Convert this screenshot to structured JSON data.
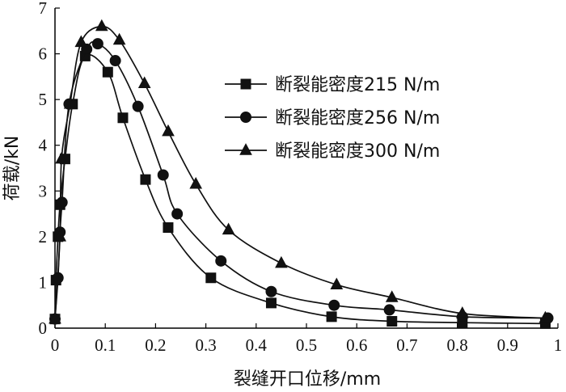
{
  "chart_data": {
    "type": "line",
    "xlabel": "裂缝开口位移/mm",
    "ylabel": "荷载/kN",
    "xlim": [
      0,
      1.0
    ],
    "ylim": [
      0,
      7
    ],
    "x_ticks": [
      "0",
      "0.1",
      "0.2",
      "0.3",
      "0.4",
      "0.5",
      "0.6",
      "0.7",
      "0.8",
      "0.9",
      "1"
    ],
    "y_ticks": [
      "0",
      "1",
      "2",
      "3",
      "4",
      "5",
      "6",
      "7"
    ],
    "grid": false,
    "legend_position": "upper-right",
    "series": [
      {
        "name": "断裂能密度215 N/m",
        "marker": "square",
        "points": [
          [
            0.0,
            0.2
          ],
          [
            0.002,
            1.05
          ],
          [
            0.006,
            2.0
          ],
          [
            0.01,
            2.7
          ],
          [
            0.02,
            3.7
          ],
          [
            0.035,
            4.9
          ],
          [
            0.06,
            5.95
          ],
          [
            0.105,
            5.6
          ],
          [
            0.135,
            4.6
          ],
          [
            0.18,
            3.25
          ],
          [
            0.225,
            2.2
          ],
          [
            0.31,
            1.1
          ],
          [
            0.43,
            0.55
          ],
          [
            0.55,
            0.25
          ],
          [
            0.67,
            0.15
          ],
          [
            0.81,
            0.12
          ],
          [
            0.975,
            0.1
          ]
        ]
      },
      {
        "name": "断裂能密度256 N/m",
        "marker": "circle",
        "points": [
          [
            0.0,
            0.2
          ],
          [
            0.006,
            1.1
          ],
          [
            0.01,
            2.1
          ],
          [
            0.014,
            2.75
          ],
          [
            0.028,
            4.9
          ],
          [
            0.063,
            6.1
          ],
          [
            0.085,
            6.22
          ],
          [
            0.12,
            5.85
          ],
          [
            0.165,
            4.85
          ],
          [
            0.215,
            3.35
          ],
          [
            0.243,
            2.5
          ],
          [
            0.33,
            1.47
          ],
          [
            0.43,
            0.8
          ],
          [
            0.555,
            0.5
          ],
          [
            0.665,
            0.4
          ],
          [
            0.81,
            0.25
          ],
          [
            0.98,
            0.22
          ]
        ]
      },
      {
        "name": "断裂能密度300 N/m",
        "marker": "triangle",
        "points": [
          [
            0.0,
            0.2
          ],
          [
            0.01,
            2.0
          ],
          [
            0.013,
            3.7
          ],
          [
            0.03,
            4.9
          ],
          [
            0.052,
            6.25
          ],
          [
            0.093,
            6.6
          ],
          [
            0.128,
            6.3
          ],
          [
            0.178,
            5.35
          ],
          [
            0.225,
            4.3
          ],
          [
            0.28,
            3.15
          ],
          [
            0.345,
            2.15
          ],
          [
            0.45,
            1.42
          ],
          [
            0.56,
            0.95
          ],
          [
            0.67,
            0.67
          ],
          [
            0.81,
            0.32
          ],
          [
            0.975,
            0.22
          ]
        ]
      }
    ]
  }
}
